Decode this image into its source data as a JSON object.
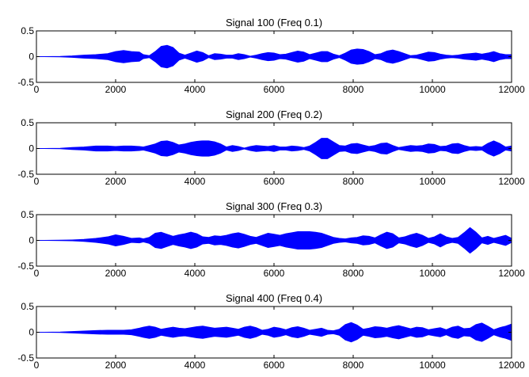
{
  "chart_data": [
    {
      "type": "area",
      "title": "Signal 100 (Freq 0.1)",
      "xlim": [
        0,
        12000
      ],
      "ylim": [
        -0.5,
        0.5
      ],
      "xticks": [
        0,
        2000,
        4000,
        6000,
        8000,
        10000,
        12000
      ],
      "yticks": [
        -0.5,
        0,
        0.5
      ],
      "color": "#0000ff",
      "x": [
        0,
        600,
        900,
        1200,
        1500,
        1800,
        2000,
        2200,
        2400,
        2600,
        2700,
        2850,
        3000,
        3150,
        3300,
        3450,
        3600,
        3750,
        3900,
        4050,
        4200,
        4350,
        4500,
        4650,
        4800,
        4950,
        5100,
        5250,
        5400,
        5550,
        5700,
        5850,
        6000,
        6150,
        6300,
        6450,
        6600,
        6750,
        6900,
        7050,
        7200,
        7350,
        7500,
        7650,
        7800,
        7950,
        8100,
        8250,
        8400,
        8550,
        8700,
        8850,
        9000,
        9150,
        9300,
        9450,
        9600,
        9750,
        9900,
        10050,
        10200,
        10350,
        10500,
        10650,
        10800,
        10950,
        11100,
        11250,
        11400,
        11550,
        11700,
        11850,
        12000
      ],
      "envelope": [
        0,
        0.005,
        0.015,
        0.03,
        0.04,
        0.06,
        0.1,
        0.12,
        0.1,
        0.09,
        0.04,
        0.02,
        0.1,
        0.2,
        0.22,
        0.18,
        0.07,
        0.03,
        0.07,
        0.11,
        0.08,
        0.02,
        0.06,
        0.05,
        0.03,
        0.03,
        0.06,
        0.04,
        0.01,
        0.03,
        0.06,
        0.08,
        0.07,
        0.04,
        0.05,
        0.08,
        0.11,
        0.09,
        0.04,
        0.07,
        0.1,
        0.1,
        0.05,
        0.02,
        0.07,
        0.13,
        0.15,
        0.14,
        0.1,
        0.04,
        0.06,
        0.11,
        0.13,
        0.1,
        0.06,
        0.02,
        0.03,
        0.06,
        0.09,
        0.08,
        0.05,
        0.03,
        0.02,
        0.03,
        0.05,
        0.06,
        0.07,
        0.05,
        0.07,
        0.1,
        0.06,
        0.04,
        0.04
      ]
    },
    {
      "type": "area",
      "title": "Signal 200 (Freq 0.2)",
      "xlim": [
        0,
        12000
      ],
      "ylim": [
        -0.5,
        0.5
      ],
      "xticks": [
        0,
        2000,
        4000,
        6000,
        8000,
        10000,
        12000
      ],
      "yticks": [
        -0.5,
        0,
        0.5
      ],
      "color": "#0000ff",
      "x": [
        0,
        600,
        900,
        1200,
        1500,
        1800,
        2000,
        2200,
        2400,
        2600,
        2700,
        2850,
        3000,
        3150,
        3300,
        3450,
        3600,
        3750,
        3900,
        4050,
        4200,
        4350,
        4500,
        4650,
        4800,
        4950,
        5100,
        5250,
        5400,
        5550,
        5700,
        5850,
        6000,
        6150,
        6300,
        6450,
        6600,
        6750,
        6900,
        7050,
        7200,
        7350,
        7500,
        7650,
        7800,
        7950,
        8100,
        8250,
        8400,
        8550,
        8700,
        8850,
        9000,
        9150,
        9300,
        9450,
        9600,
        9750,
        9900,
        10050,
        10200,
        10350,
        10500,
        10650,
        10800,
        10950,
        11100,
        11250,
        11400,
        11550,
        11700,
        11850,
        12000
      ],
      "envelope": [
        0,
        0.005,
        0.02,
        0.03,
        0.05,
        0.05,
        0.04,
        0.05,
        0.05,
        0.04,
        0.03,
        0.06,
        0.09,
        0.14,
        0.15,
        0.12,
        0.07,
        0.09,
        0.12,
        0.14,
        0.15,
        0.15,
        0.13,
        0.09,
        0.03,
        0.06,
        0.04,
        0.01,
        0.04,
        0.06,
        0.05,
        0.04,
        0.06,
        0.03,
        0.03,
        0.05,
        0.04,
        0.02,
        0.05,
        0.12,
        0.2,
        0.2,
        0.13,
        0.06,
        0.05,
        0.09,
        0.1,
        0.07,
        0.04,
        0.06,
        0.1,
        0.11,
        0.06,
        0.02,
        0.04,
        0.06,
        0.05,
        0.06,
        0.09,
        0.08,
        0.04,
        0.05,
        0.09,
        0.1,
        0.06,
        0.03,
        0.04,
        0.03,
        0.1,
        0.15,
        0.1,
        0.03,
        0.05
      ]
    },
    {
      "type": "area",
      "title": "Signal 300 (Freq 0.3)",
      "xlim": [
        0,
        12000
      ],
      "ylim": [
        -0.5,
        0.5
      ],
      "xticks": [
        0,
        2000,
        4000,
        6000,
        8000,
        10000,
        12000
      ],
      "yticks": [
        -0.5,
        0,
        0.5
      ],
      "color": "#0000ff",
      "x": [
        0,
        600,
        900,
        1200,
        1500,
        1800,
        2000,
        2200,
        2400,
        2600,
        2700,
        2850,
        3000,
        3150,
        3300,
        3450,
        3600,
        3750,
        3900,
        4050,
        4200,
        4350,
        4500,
        4650,
        4800,
        4950,
        5100,
        5250,
        5400,
        5550,
        5700,
        5850,
        6000,
        6150,
        6300,
        6450,
        6600,
        6750,
        6900,
        7050,
        7200,
        7350,
        7500,
        7650,
        7800,
        7950,
        8100,
        8250,
        8400,
        8550,
        8700,
        8850,
        9000,
        9150,
        9300,
        9450,
        9600,
        9750,
        9900,
        10050,
        10200,
        10350,
        10500,
        10650,
        10800,
        10950,
        11100,
        11250,
        11400,
        11550,
        11700,
        11850,
        12000
      ],
      "envelope": [
        0,
        0.005,
        0.01,
        0.02,
        0.04,
        0.07,
        0.11,
        0.08,
        0.04,
        0.05,
        0.03,
        0.06,
        0.14,
        0.16,
        0.12,
        0.08,
        0.11,
        0.13,
        0.16,
        0.13,
        0.07,
        0.06,
        0.09,
        0.08,
        0.1,
        0.13,
        0.15,
        0.12,
        0.08,
        0.06,
        0.1,
        0.14,
        0.12,
        0.1,
        0.13,
        0.15,
        0.17,
        0.17,
        0.17,
        0.16,
        0.14,
        0.1,
        0.06,
        0.04,
        0.03,
        0.05,
        0.06,
        0.09,
        0.08,
        0.05,
        0.11,
        0.16,
        0.13,
        0.05,
        0.07,
        0.11,
        0.14,
        0.1,
        0.04,
        0.07,
        0.13,
        0.07,
        0.04,
        0.06,
        0.15,
        0.25,
        0.16,
        0.05,
        0.08,
        0.04,
        0.07,
        0.1,
        0.04
      ]
    },
    {
      "type": "area",
      "title": "Signal 400 (Freq 0.4)",
      "xlim": [
        0,
        12000
      ],
      "ylim": [
        -0.5,
        0.5
      ],
      "xticks": [
        0,
        2000,
        4000,
        6000,
        8000,
        10000,
        12000
      ],
      "yticks": [
        -0.5,
        0,
        0.5
      ],
      "color": "#0000ff",
      "x": [
        0,
        600,
        900,
        1200,
        1500,
        1800,
        2000,
        2200,
        2400,
        2600,
        2700,
        2850,
        3000,
        3150,
        3300,
        3450,
        3600,
        3750,
        3900,
        4050,
        4200,
        4350,
        4500,
        4650,
        4800,
        4950,
        5100,
        5250,
        5400,
        5550,
        5700,
        5850,
        6000,
        6150,
        6300,
        6450,
        6600,
        6750,
        6900,
        7050,
        7200,
        7350,
        7500,
        7650,
        7800,
        7950,
        8100,
        8250,
        8400,
        8550,
        8700,
        8850,
        9000,
        9150,
        9300,
        9450,
        9600,
        9750,
        9900,
        10050,
        10200,
        10350,
        10500,
        10650,
        10800,
        10950,
        11100,
        11250,
        11400,
        11550,
        11700,
        11850,
        12000
      ],
      "envelope": [
        0,
        0.005,
        0.015,
        0.025,
        0.035,
        0.04,
        0.04,
        0.04,
        0.05,
        0.08,
        0.1,
        0.12,
        0.1,
        0.06,
        0.08,
        0.1,
        0.08,
        0.07,
        0.09,
        0.11,
        0.12,
        0.1,
        0.08,
        0.09,
        0.1,
        0.08,
        0.06,
        0.1,
        0.12,
        0.09,
        0.04,
        0.06,
        0.1,
        0.08,
        0.05,
        0.09,
        0.11,
        0.08,
        0.04,
        0.06,
        0.08,
        0.04,
        0.03,
        0.06,
        0.15,
        0.19,
        0.14,
        0.06,
        0.08,
        0.11,
        0.1,
        0.08,
        0.11,
        0.13,
        0.1,
        0.07,
        0.1,
        0.09,
        0.05,
        0.07,
        0.09,
        0.05,
        0.1,
        0.12,
        0.07,
        0.08,
        0.15,
        0.18,
        0.12,
        0.05,
        0.09,
        0.12,
        0.16
      ]
    }
  ]
}
